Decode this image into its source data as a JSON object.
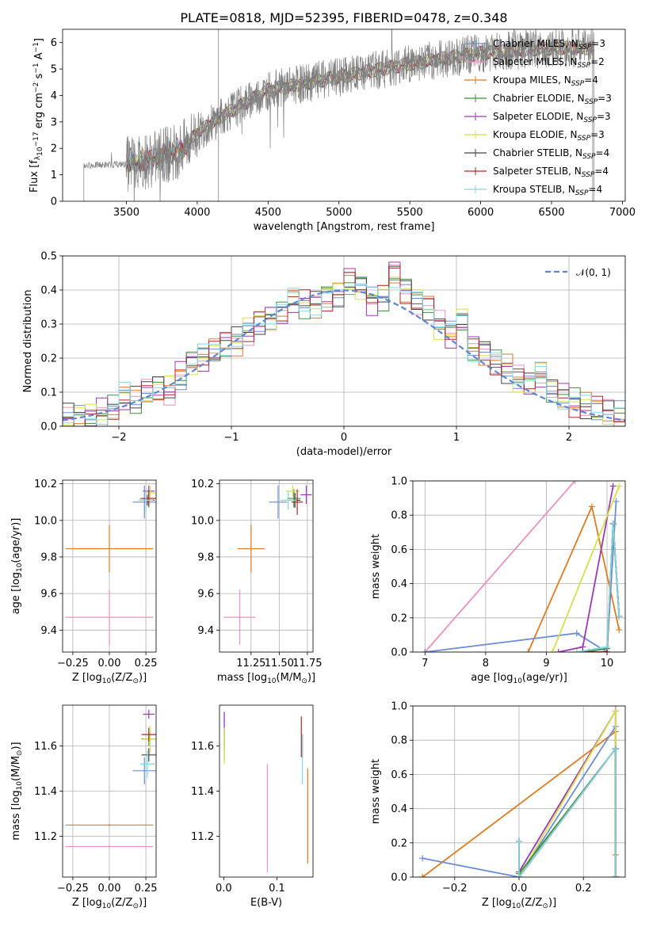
{
  "figure": {
    "title": "PLATE=0818, MJD=52395, FIBERID=0478, z=0.348"
  },
  "palette": {
    "Chabrier MILES": "#6b8ed6",
    "Salpeter MILES": "#e991c0",
    "Kroupa MILES": "#e07b20",
    "Chabrier ELODIE": "#3f8f3f",
    "Salpeter ELODIE": "#9b3bb0",
    "Kroupa ELODIE": "#d7e04a",
    "Chabrier STELIB": "#444444",
    "Salpeter STELIB": "#b0242a",
    "Kroupa STELIB": "#80d8e0",
    "data": "#808080"
  },
  "chart_data": [
    {
      "id": "spectrum",
      "type": "line",
      "title": "PLATE=0818, MJD=52395, FIBERID=0478, z=0.348",
      "xlabel": "wavelength [Angstrom, rest frame]",
      "ylabel_parts": [
        "Flux [f",
        "λ",
        "10",
        "−17",
        " erg cm",
        "−2",
        " s",
        "−1",
        " A",
        "−1",
        "]"
      ],
      "xlim": [
        3050,
        7020
      ],
      "ylim": [
        0,
        6.5
      ],
      "xticks": [
        3500,
        4000,
        4500,
        5000,
        5500,
        6000,
        6500,
        7000
      ],
      "yticks": [
        0,
        1,
        2,
        3,
        4,
        5,
        6
      ],
      "grid": false,
      "legend_position": "upper right",
      "data_range": [
        3200,
        6800
      ],
      "continuum_points": [
        [
          3200,
          1.35
        ],
        [
          3500,
          1.4
        ],
        [
          3700,
          1.6
        ],
        [
          3900,
          2.0
        ],
        [
          4000,
          2.6
        ],
        [
          4200,
          3.3
        ],
        [
          4500,
          4.2
        ],
        [
          4800,
          4.5
        ],
        [
          5000,
          4.7
        ],
        [
          5200,
          4.9
        ],
        [
          5500,
          5.2
        ],
        [
          6000,
          5.6
        ],
        [
          6500,
          5.8
        ],
        [
          6800,
          5.8
        ]
      ],
      "legend": [
        {
          "name": "Chabrier MILES",
          "n": "3"
        },
        {
          "name": "Salpeter MILES",
          "n": "2"
        },
        {
          "name": "Kroupa MILES",
          "n": "4"
        },
        {
          "name": "Chabrier ELODIE",
          "n": "3"
        },
        {
          "name": "Salpeter ELODIE",
          "n": "3"
        },
        {
          "name": "Kroupa ELODIE",
          "n": "3"
        },
        {
          "name": "Chabrier STELIB",
          "n": "4"
        },
        {
          "name": "Salpeter STELIB",
          "n": "4"
        },
        {
          "name": "Kroupa STELIB",
          "n": "4"
        }
      ],
      "legend_sub": "SSP"
    },
    {
      "id": "residuals",
      "type": "line",
      "xlabel": "(data-model)/error",
      "ylabel": "Normed distribution",
      "xlim": [
        -2.5,
        2.5
      ],
      "ylim": [
        0,
        0.5
      ],
      "xticks": [
        -2,
        -1,
        0,
        1,
        2
      ],
      "yticks": [
        0.0,
        0.1,
        0.2,
        0.3,
        0.4,
        0.5
      ],
      "grid": true,
      "reference_curve": "𝒩(0, 1)",
      "legend_position": "upper right",
      "bin_width": 0.1,
      "shape_bins": [
        -2.5,
        -2.4,
        -2.3,
        -2.2,
        -2.1,
        -2.0,
        -1.9,
        -1.8,
        -1.7,
        -1.6,
        -1.5,
        -1.4,
        -1.3,
        -1.2,
        -1.1,
        -1.0,
        -0.9,
        -0.8,
        -0.7,
        -0.6,
        -0.5,
        -0.4,
        -0.3,
        -0.2,
        -0.1,
        0.0,
        0.1,
        0.2,
        0.3,
        0.4,
        0.5,
        0.6,
        0.7,
        0.8,
        0.9,
        1.0,
        1.1,
        1.2,
        1.3,
        1.4,
        1.5,
        1.6,
        1.7,
        1.8,
        1.9,
        2.0,
        2.1,
        2.2,
        2.3,
        2.4
      ],
      "shape_values": [
        0.025,
        0.022,
        0.03,
        0.04,
        0.05,
        0.085,
        0.075,
        0.1,
        0.11,
        0.105,
        0.15,
        0.19,
        0.2,
        0.22,
        0.24,
        0.25,
        0.28,
        0.31,
        0.32,
        0.33,
        0.37,
        0.36,
        0.36,
        0.38,
        0.39,
        0.43,
        0.41,
        0.37,
        0.38,
        0.45,
        0.4,
        0.37,
        0.35,
        0.3,
        0.27,
        0.31,
        0.23,
        0.22,
        0.19,
        0.17,
        0.14,
        0.12,
        0.15,
        0.11,
        0.09,
        0.07,
        0.06,
        0.05,
        0.04,
        0.03
      ]
    },
    {
      "id": "age-vs-Z",
      "type": "scatter",
      "xlabel_parts": [
        "Z [log",
        "10",
        "(Z/Z",
        "⊙",
        ")]"
      ],
      "ylabel_parts": [
        "age  [log",
        "10",
        "(age/yr)]"
      ],
      "xlim": [
        -0.32,
        0.32
      ],
      "ylim": [
        9.28,
        10.22
      ],
      "xticks": [
        -0.25,
        0.0,
        0.25
      ],
      "yticks": [
        9.4,
        9.6,
        9.8,
        10.0,
        10.2
      ],
      "grid": true,
      "points": [
        {
          "model": "Salpeter MILES",
          "x": 0.0,
          "xerr": 0.3,
          "y": 9.47,
          "yerr": 0.15
        },
        {
          "model": "Kroupa MILES",
          "x": 0.0,
          "xerr": 0.3,
          "y": 9.845,
          "yerr": 0.13
        },
        {
          "model": "Chabrier MILES",
          "x": 0.24,
          "xerr": 0.08,
          "y": 10.1,
          "yerr": 0.09
        },
        {
          "model": "Chabrier ELODIE",
          "x": 0.27,
          "xerr": 0.06,
          "y": 10.12,
          "yerr": 0.05
        },
        {
          "model": "Salpeter ELODIE",
          "x": 0.27,
          "xerr": 0.04,
          "y": 10.16,
          "yerr": 0.03
        },
        {
          "model": "Kroupa ELODIE",
          "x": 0.28,
          "xerr": 0.04,
          "y": 10.15,
          "yerr": 0.04
        },
        {
          "model": "Chabrier STELIB",
          "x": 0.26,
          "xerr": 0.05,
          "y": 10.11,
          "yerr": 0.03
        },
        {
          "model": "Salpeter STELIB",
          "x": 0.27,
          "xerr": 0.05,
          "y": 10.12,
          "yerr": 0.04
        },
        {
          "model": "Kroupa STELIB",
          "x": 0.25,
          "xerr": 0.05,
          "y": 10.11,
          "yerr": 0.06
        }
      ]
    },
    {
      "id": "age-vs-mass",
      "type": "scatter",
      "xlabel_parts": [
        "mass [log",
        "10",
        "(M/M",
        "⊙",
        ")]"
      ],
      "xlim": [
        10.97,
        11.8
      ],
      "ylim": [
        9.28,
        10.22
      ],
      "xticks": [
        11.25,
        11.5,
        11.75
      ],
      "yticks": [
        9.4,
        9.6,
        9.8,
        10.0,
        10.2
      ],
      "grid": true,
      "points": [
        {
          "model": "Salpeter MILES",
          "x": 11.15,
          "xerr": 0.14,
          "y": 9.47,
          "yerr": 0.15
        },
        {
          "model": "Kroupa MILES",
          "x": 11.25,
          "xerr": 0.12,
          "y": 9.845,
          "yerr": 0.13
        },
        {
          "model": "Chabrier MILES",
          "x": 11.49,
          "xerr": 0.08,
          "y": 10.1,
          "yerr": 0.09
        },
        {
          "model": "Chabrier ELODIE",
          "x": 11.63,
          "xerr": 0.06,
          "y": 10.12,
          "yerr": 0.05
        },
        {
          "model": "Salpeter ELODIE",
          "x": 11.74,
          "xerr": 0.05,
          "y": 10.14,
          "yerr": 0.05
        },
        {
          "model": "Kroupa ELODIE",
          "x": 11.62,
          "xerr": 0.06,
          "y": 10.16,
          "yerr": 0.03
        },
        {
          "model": "Chabrier STELIB",
          "x": 11.64,
          "xerr": 0.05,
          "y": 10.11,
          "yerr": 0.04
        },
        {
          "model": "Salpeter STELIB",
          "x": 11.66,
          "xerr": 0.05,
          "y": 10.1,
          "yerr": 0.07
        },
        {
          "model": "Kroupa STELIB",
          "x": 11.58,
          "xerr": 0.07,
          "y": 10.11,
          "yerr": 0.05
        }
      ]
    },
    {
      "id": "mass-weight-vs-age",
      "type": "line",
      "xlabel_parts": [
        "age  [log",
        "10",
        "(age/yr)]"
      ],
      "ylabel": "mass weight",
      "xlim": [
        6.8,
        10.3
      ],
      "ylim": [
        0,
        1
      ],
      "xticks": [
        7,
        8,
        9,
        10
      ],
      "yticks": [
        0.0,
        0.2,
        0.4,
        0.6,
        0.8,
        1.0
      ],
      "grid": true,
      "series": [
        {
          "model": "Salpeter MILES",
          "x": [
            7.0,
            9.47
          ],
          "y": [
            0.0,
            1.0
          ]
        },
        {
          "model": "Kroupa MILES",
          "x": [
            8.7,
            9.75,
            10.2
          ],
          "y": [
            0.0,
            0.85,
            0.13
          ]
        },
        {
          "model": "Chabrier MILES",
          "x": [
            7.0,
            9.5,
            10.0,
            10.15
          ],
          "y": [
            0.0,
            0.11,
            0.0,
            0.88
          ]
        },
        {
          "model": "Salpeter ELODIE",
          "x": [
            9.2,
            9.6,
            10.1
          ],
          "y": [
            0.0,
            0.03,
            0.97
          ]
        },
        {
          "model": "Kroupa ELODIE",
          "x": [
            9.1,
            10.2
          ],
          "y": [
            0.0,
            0.97
          ]
        },
        {
          "model": "Chabrier ELODIE",
          "x": [
            9.6,
            10.0,
            10.1,
            10.2
          ],
          "y": [
            0.0,
            0.02,
            0.75,
            0.21
          ]
        },
        {
          "model": "Chabrier STELIB",
          "x": [
            9.6,
            10.0,
            10.1,
            10.2
          ],
          "y": [
            0.0,
            0.0,
            0.75,
            0.21
          ]
        },
        {
          "model": "Salpeter STELIB",
          "x": [
            9.7,
            10.0,
            10.1,
            10.2
          ],
          "y": [
            0.0,
            0.0,
            0.75,
            0.21
          ]
        },
        {
          "model": "Kroupa STELIB",
          "x": [
            9.5,
            10.0,
            10.1,
            10.2
          ],
          "y": [
            0.0,
            0.03,
            0.75,
            0.21
          ]
        }
      ]
    },
    {
      "id": "mass-vs-Z",
      "type": "scatter",
      "xlabel_parts": [
        "Z [log",
        "10",
        "(Z/Z",
        "⊙",
        ")]"
      ],
      "ylabel_parts": [
        "mass [log",
        "10",
        "(M/M",
        "⊙",
        ")]"
      ],
      "xlim": [
        -0.32,
        0.32
      ],
      "ylim": [
        11.02,
        11.78
      ],
      "xticks": [
        -0.25,
        0.0,
        0.25
      ],
      "yticks": [
        11.2,
        11.4,
        11.6
      ],
      "grid": true,
      "points": [
        {
          "model": "Salpeter MILES",
          "x": 0.0,
          "xerr": 0.3,
          "y": 11.155,
          "yerr": 0.0
        },
        {
          "model": "Kroupa MILES",
          "x": 0.0,
          "xerr": 0.3,
          "y": 11.25,
          "yerr": 0.0
        },
        {
          "model": "Chabrier MILES",
          "x": 0.24,
          "xerr": 0.08,
          "y": 11.49,
          "yerr": 0.06
        },
        {
          "model": "Chabrier ELODIE",
          "x": 0.27,
          "xerr": 0.05,
          "y": 11.63,
          "yerr": 0.03
        },
        {
          "model": "Salpeter ELODIE",
          "x": 0.27,
          "xerr": 0.04,
          "y": 11.74,
          "yerr": 0.02
        },
        {
          "model": "Kroupa ELODIE",
          "x": 0.28,
          "xerr": 0.05,
          "y": 11.63,
          "yerr": 0.06
        },
        {
          "model": "Chabrier STELIB",
          "x": 0.27,
          "xerr": 0.05,
          "y": 11.56,
          "yerr": 0.03
        },
        {
          "model": "Salpeter STELIB",
          "x": 0.27,
          "xerr": 0.05,
          "y": 11.65,
          "yerr": 0.03
        },
        {
          "model": "Kroupa STELIB",
          "x": 0.26,
          "xerr": 0.05,
          "y": 11.52,
          "yerr": 0.06
        }
      ]
    },
    {
      "id": "mass-vs-EBV",
      "type": "scatter",
      "xlabel": "E(B-V)",
      "xlim": [
        -0.008,
        0.168
      ],
      "ylim": [
        11.02,
        11.78
      ],
      "xticks": [
        0.0,
        0.1
      ],
      "yticks": [
        11.2,
        11.4,
        11.6
      ],
      "grid": false,
      "points": [
        {
          "model": "Salpeter MILES",
          "x": 0.082,
          "y": 11.28,
          "yerr": 0.24
        },
        {
          "model": "Kroupa MILES",
          "x": 0.158,
          "y": 11.29,
          "yerr": 0.21
        },
        {
          "model": "Chabrier MILES",
          "x": 0.001,
          "y": 11.67,
          "yerr": 0.08
        },
        {
          "model": "Chabrier ELODIE",
          "x": 0.001,
          "y": 11.6,
          "yerr": 0.06
        },
        {
          "model": "Salpeter ELODIE",
          "x": 0.001,
          "y": 11.7,
          "yerr": 0.05
        },
        {
          "model": "Kroupa ELODIE",
          "x": 0.001,
          "y": 11.6,
          "yerr": 0.08
        },
        {
          "model": "Chabrier STELIB",
          "x": 0.148,
          "y": 11.6,
          "yerr": 0.05
        },
        {
          "model": "Salpeter STELIB",
          "x": 0.146,
          "y": 11.64,
          "yerr": 0.09
        },
        {
          "model": "Kroupa STELIB",
          "x": 0.148,
          "y": 11.54,
          "yerr": 0.11
        }
      ]
    },
    {
      "id": "mass-weight-vs-Z",
      "type": "line",
      "xlabel_parts": [
        "Z [log",
        "10",
        "(Z/Z",
        "⊙",
        ")]"
      ],
      "ylabel": "mass weight",
      "xlim": [
        -0.33,
        0.33
      ],
      "ylim": [
        0,
        1
      ],
      "xticks": [
        -0.2,
        0.0,
        0.2
      ],
      "yticks": [
        0.0,
        0.2,
        0.4,
        0.6,
        0.8,
        1.0
      ],
      "grid": true,
      "series": [
        {
          "model": "Kroupa MILES",
          "x": [
            -0.3,
            0.3,
            0.3
          ],
          "y": [
            0.0,
            0.85,
            0.13
          ]
        },
        {
          "model": "Chabrier MILES",
          "x": [
            -0.3,
            0.0,
            0.3
          ],
          "y": [
            0.11,
            0.0,
            0.88
          ]
        },
        {
          "model": "Salpeter MILES",
          "x": [
            0.3,
            0.3
          ],
          "y": [
            0.0,
            1.0
          ]
        },
        {
          "model": "Salpeter ELODIE",
          "x": [
            0.0,
            0.3,
            0.3
          ],
          "y": [
            0.03,
            0.97,
            0.0
          ]
        },
        {
          "model": "Kroupa ELODIE",
          "x": [
            0.0,
            0.3,
            0.3
          ],
          "y": [
            0.0,
            0.97,
            0.0
          ]
        },
        {
          "model": "Chabrier ELODIE",
          "x": [
            0.0,
            0.0,
            0.3,
            0.3
          ],
          "y": [
            0.21,
            0.02,
            0.75,
            0.0
          ]
        },
        {
          "model": "Chabrier STELIB",
          "x": [
            0.0,
            0.0,
            0.3,
            0.3
          ],
          "y": [
            0.21,
            0.0,
            0.75,
            0.0
          ]
        },
        {
          "model": "Salpeter STELIB",
          "x": [
            0.0,
            0.0,
            0.3,
            0.3
          ],
          "y": [
            0.21,
            0.0,
            0.75,
            0.0
          ]
        },
        {
          "model": "Kroupa STELIB",
          "x": [
            0.0,
            0.0,
            0.3,
            0.3
          ],
          "y": [
            0.21,
            0.0,
            0.75,
            0.0
          ]
        }
      ]
    }
  ]
}
